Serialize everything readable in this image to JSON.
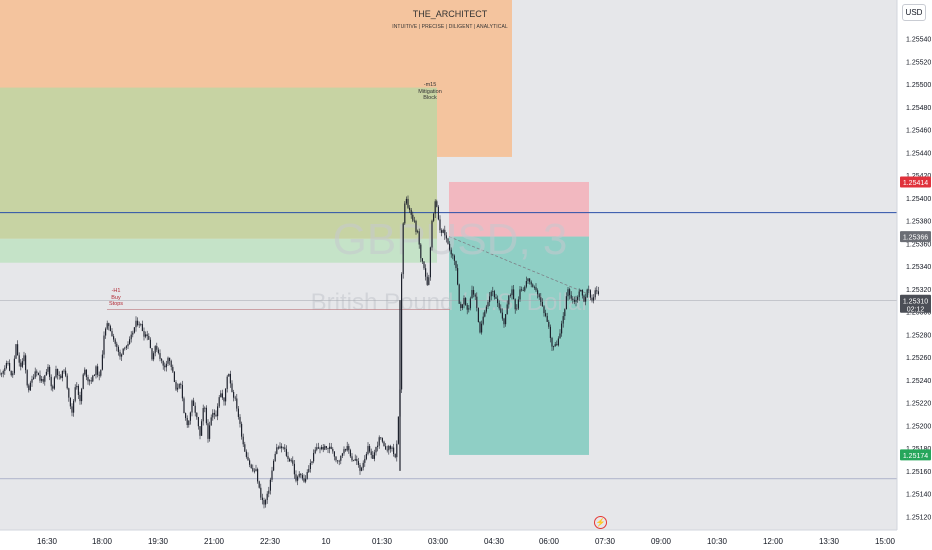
{
  "header": {
    "brand": "THE_ARCHITECT",
    "tagline": "INTUITIVE | PRECISE | DILIGENT | ANALYTICAL",
    "currency_button": "USD",
    "watermark_symbol": "GBPUSD, 3",
    "watermark_name": "British Pound / U.S. Dollar"
  },
  "annotations": {
    "mitigation_block": [
      "-m15",
      "Mitigation",
      "Block"
    ],
    "buy_stops": [
      "-H1",
      "Buy",
      "Stops"
    ]
  },
  "price_labels": {
    "stop_loss": "1.25414",
    "entry": "1.25366",
    "current": "1.25310",
    "countdown": "02:12",
    "target": "1.25174"
  },
  "colors": {
    "candle": "#1e222d",
    "orange_zone": "#f4c49e",
    "olive_zone": "#c7d3a3",
    "green_zone": "#c5e3c8",
    "loss_zone": "#f2b8c0",
    "profit_zone": "#8fcfc5",
    "blue_line": "#2a4fa8",
    "sl_label": "#e0323c",
    "entry_label": "#6b6e75",
    "current_label": "#4b4e56",
    "tp_label": "#26a65b"
  },
  "chart_data": {
    "type": "candlestick",
    "symbol": "GBPUSD",
    "timeframe": "3",
    "x_ticks": [
      "16:30",
      "18:00",
      "19:30",
      "21:00",
      "22:30",
      "10",
      "01:30",
      "03:00",
      "04:30",
      "06:00",
      "07:30",
      "09:00",
      "10:30",
      "12:00",
      "13:30",
      "15:00"
    ],
    "y_ticks": [
      1.2512,
      1.2514,
      1.2516,
      1.2518,
      1.252,
      1.2522,
      1.2524,
      1.2526,
      1.2528,
      1.253,
      1.2532,
      1.2534,
      1.2536,
      1.2538,
      1.254,
      1.2542,
      1.2544,
      1.2546,
      1.2548,
      1.255,
      1.2552,
      1.2554
    ],
    "ylim": [
      1.25108,
      1.25574
    ],
    "close_path": [
      [
        0,
        1.25245
      ],
      [
        4,
        1.2525
      ],
      [
        8,
        1.25255
      ],
      [
        12,
        1.2524
      ],
      [
        16,
        1.2527
      ],
      [
        20,
        1.2525
      ],
      [
        24,
        1.2526
      ],
      [
        28,
        1.2523
      ],
      [
        32,
        1.2524
      ],
      [
        36,
        1.2525
      ],
      [
        40,
        1.2524
      ],
      [
        44,
        1.2524
      ],
      [
        48,
        1.2525
      ],
      [
        52,
        1.2523
      ],
      [
        56,
        1.2525
      ],
      [
        60,
        1.2524
      ],
      [
        64,
        1.2525
      ],
      [
        68,
        1.2523
      ],
      [
        72,
        1.2521
      ],
      [
        76,
        1.2524
      ],
      [
        80,
        1.2522
      ],
      [
        84,
        1.2525
      ],
      [
        88,
        1.2524
      ],
      [
        92,
        1.2524
      ],
      [
        96,
        1.2525
      ],
      [
        100,
        1.2524
      ],
      [
        104,
        1.2528
      ],
      [
        108,
        1.2529
      ],
      [
        112,
        1.2528
      ],
      [
        116,
        1.2527
      ],
      [
        120,
        1.2526
      ],
      [
        124,
        1.2527
      ],
      [
        128,
        1.2527
      ],
      [
        132,
        1.2528
      ],
      [
        136,
        1.2529
      ],
      [
        140,
        1.2529
      ],
      [
        144,
        1.2528
      ],
      [
        148,
        1.2528
      ],
      [
        152,
        1.2526
      ],
      [
        156,
        1.2527
      ],
      [
        160,
        1.2526
      ],
      [
        164,
        1.2525
      ],
      [
        168,
        1.2526
      ],
      [
        172,
        1.2525
      ],
      [
        176,
        1.2523
      ],
      [
        180,
        1.2524
      ],
      [
        184,
        1.2521
      ],
      [
        188,
        1.252
      ],
      [
        192,
        1.2522
      ],
      [
        196,
        1.2521
      ],
      [
        200,
        1.2519
      ],
      [
        204,
        1.2522
      ],
      [
        208,
        1.2519
      ],
      [
        212,
        1.2521
      ],
      [
        216,
        1.2521
      ],
      [
        220,
        1.2523
      ],
      [
        224,
        1.2522
      ],
      [
        228,
        1.2525
      ],
      [
        232,
        1.2523
      ],
      [
        236,
        1.2522
      ],
      [
        240,
        1.252
      ],
      [
        244,
        1.2518
      ],
      [
        248,
        1.2517
      ],
      [
        252,
        1.2516
      ],
      [
        256,
        1.2516
      ],
      [
        260,
        1.2514
      ],
      [
        264,
        1.2513
      ],
      [
        268,
        1.2514
      ],
      [
        272,
        1.2516
      ],
      [
        276,
        1.2518
      ],
      [
        280,
        1.2518
      ],
      [
        284,
        1.2518
      ],
      [
        288,
        1.2517
      ],
      [
        292,
        1.2517
      ],
      [
        296,
        1.2515
      ],
      [
        300,
        1.2516
      ],
      [
        304,
        1.2515
      ],
      [
        308,
        1.2516
      ],
      [
        312,
        1.2517
      ],
      [
        316,
        1.2518
      ],
      [
        320,
        1.2518
      ],
      [
        324,
        1.2518
      ],
      [
        328,
        1.2518
      ],
      [
        332,
        1.2518
      ],
      [
        336,
        1.2517
      ],
      [
        340,
        1.2517
      ],
      [
        344,
        1.2518
      ],
      [
        348,
        1.2518
      ],
      [
        352,
        1.2517
      ],
      [
        356,
        1.2517
      ],
      [
        360,
        1.2516
      ],
      [
        364,
        1.2517
      ],
      [
        368,
        1.2518
      ],
      [
        372,
        1.2517
      ],
      [
        376,
        1.2518
      ],
      [
        380,
        1.2519
      ],
      [
        384,
        1.2518
      ],
      [
        388,
        1.2518
      ],
      [
        392,
        1.2518
      ],
      [
        396,
        1.2517
      ],
      [
        400,
        1.2523
      ],
      [
        402,
        1.2536
      ],
      [
        404,
        1.2539
      ],
      [
        406,
        1.254
      ],
      [
        408,
        1.2539
      ],
      [
        410,
        1.2539
      ],
      [
        412,
        1.2538
      ],
      [
        414,
        1.2538
      ],
      [
        416,
        1.2537
      ],
      [
        418,
        1.2537
      ],
      [
        420,
        1.2535
      ],
      [
        424,
        1.2534
      ],
      [
        428,
        1.2532
      ],
      [
        432,
        1.2538
      ],
      [
        436,
        1.254
      ],
      [
        440,
        1.2537
      ],
      [
        444,
        1.2537
      ],
      [
        448,
        1.2536
      ],
      [
        452,
        1.2535
      ],
      [
        456,
        1.2534
      ],
      [
        460,
        1.253
      ],
      [
        464,
        1.2531
      ],
      [
        468,
        1.253
      ],
      [
        472,
        1.2532
      ],
      [
        476,
        1.2531
      ],
      [
        480,
        1.2528
      ],
      [
        484,
        1.253
      ],
      [
        488,
        1.2531
      ],
      [
        492,
        1.2532
      ],
      [
        496,
        1.2531
      ],
      [
        500,
        1.253
      ],
      [
        504,
        1.2529
      ],
      [
        508,
        1.2531
      ],
      [
        512,
        1.2532
      ],
      [
        516,
        1.253
      ],
      [
        520,
        1.2532
      ],
      [
        524,
        1.2532
      ],
      [
        528,
        1.2533
      ],
      [
        532,
        1.2532
      ],
      [
        536,
        1.2532
      ],
      [
        540,
        1.2531
      ],
      [
        544,
        1.253
      ],
      [
        548,
        1.2529
      ],
      [
        552,
        1.2527
      ],
      [
        556,
        1.2527
      ],
      [
        560,
        1.2528
      ],
      [
        564,
        1.253
      ],
      [
        568,
        1.2532
      ],
      [
        572,
        1.2531
      ],
      [
        576,
        1.2531
      ],
      [
        580,
        1.2532
      ],
      [
        584,
        1.2531
      ],
      [
        588,
        1.2532
      ],
      [
        592,
        1.2531
      ],
      [
        596,
        1.2532
      ],
      [
        600,
        1.2531
      ]
    ],
    "zones": {
      "orange_box": [
        1.25574,
        1.25436
      ],
      "olive_box": [
        1.25497,
        1.25364
      ],
      "green_box": [
        1.25364,
        1.25343
      ],
      "short_stop_loss": 1.25414,
      "short_entry": 1.25366,
      "short_target": 1.25174
    },
    "horizontal_lines": {
      "blue_line": 1.25387,
      "current_price": 1.2531,
      "buy_stops_level": 1.25302,
      "low_line": 1.25153
    }
  }
}
